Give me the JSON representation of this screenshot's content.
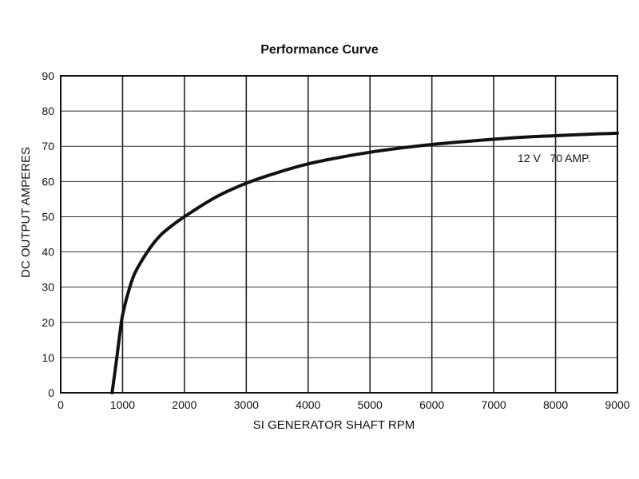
{
  "chart_data": {
    "type": "line",
    "title": "Performance Curve",
    "xlabel": "SI GENERATOR SHAFT RPM",
    "ylabel": "DC OUTPUT AMPERES",
    "xlim": [
      0,
      9000
    ],
    "ylim": [
      0,
      90
    ],
    "x_ticks": [
      "0",
      "1000",
      "2000",
      "3000",
      "4000",
      "5000",
      "6000",
      "7000",
      "8000",
      "9000"
    ],
    "y_ticks": [
      "0",
      "10",
      "20",
      "30",
      "40",
      "50",
      "60",
      "70",
      "80",
      "90"
    ],
    "grid": true,
    "series": [
      {
        "name": "12 V   70 AMP.",
        "x": [
          830,
          900,
          950,
          1000,
          1100,
          1200,
          1400,
          1600,
          1800,
          2000,
          2500,
          3000,
          3500,
          4000,
          4500,
          5000,
          5500,
          6000,
          6500,
          7000,
          7500,
          8000,
          8500,
          9000
        ],
        "y": [
          0,
          9,
          16,
          22,
          29,
          34,
          40,
          44.5,
          47.5,
          50,
          55.5,
          59.5,
          62.5,
          65,
          66.8,
          68.3,
          69.5,
          70.5,
          71.3,
          72,
          72.6,
          73,
          73.4,
          73.7
        ]
      }
    ],
    "annotation": "12 V   70 AMP."
  }
}
